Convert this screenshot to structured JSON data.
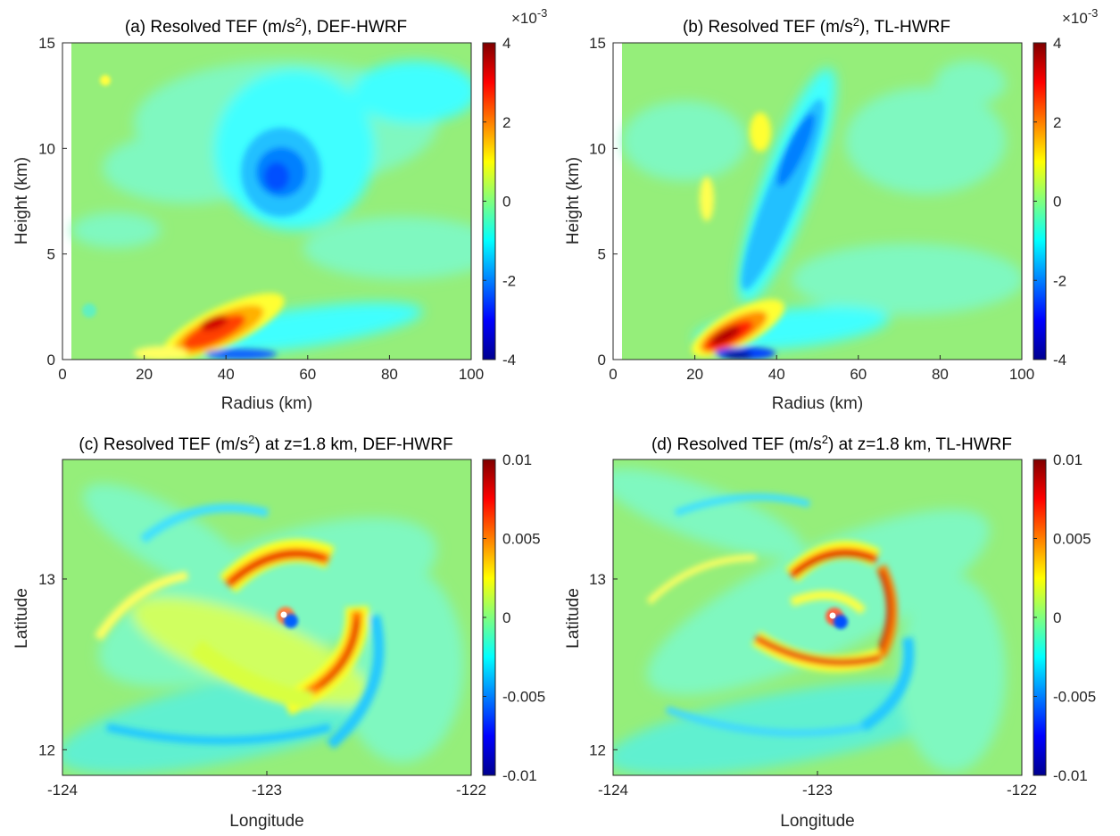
{
  "figure": {
    "colormap": [
      "#00008f",
      "#0000ff",
      "#007fff",
      "#00ffff",
      "#7fff7f",
      "#ffff00",
      "#ff7f00",
      "#ff0000",
      "#7f0000"
    ],
    "background_level_color": "#95ee7a"
  },
  "chart_data": [
    {
      "id": "a",
      "type": "heatmap",
      "title": "(a) Resolved TEF (m/s2), DEF-HWRF",
      "title_parts": {
        "pre": "(a) Resolved TEF (m/s",
        "sup": "2",
        "post": "), DEF-HWRF"
      },
      "xlabel": "Radius (km)",
      "ylabel": "Height (km)",
      "xlim": [
        0,
        100
      ],
      "ylim": [
        0,
        15
      ],
      "xticks": [
        "0",
        "20",
        "40",
        "60",
        "80",
        "100"
      ],
      "yticks": [
        "0",
        "5",
        "10",
        "15"
      ],
      "colorbar": {
        "ticks": [
          "4",
          "2",
          "0",
          "-2",
          "-4"
        ],
        "range": [
          -4,
          4
        ],
        "multiplier": "×10-3",
        "mult_base": "×10",
        "mult_exp": "-3"
      },
      "features": [
        {
          "label": "positive maximum",
          "x": 40,
          "y": 1.7,
          "value": 3.6
        },
        {
          "label": "negative band below maximum",
          "x": 50,
          "y": 0.6,
          "value": -1.6
        },
        {
          "label": "negative maximum aloft",
          "x": 52,
          "y": 9.0,
          "value": -1.8
        }
      ]
    },
    {
      "id": "b",
      "type": "heatmap",
      "title": "(b) Resolved TEF (m/s2), TL-HWRF",
      "title_parts": {
        "pre": "(b) Resolved TEF (m/s",
        "sup": "2",
        "post": "), TL-HWRF"
      },
      "xlabel": "Radius (km)",
      "ylabel": "Height (km)",
      "xlim": [
        0,
        100
      ],
      "ylim": [
        0,
        15
      ],
      "xticks": [
        "0",
        "20",
        "40",
        "60",
        "80",
        "100"
      ],
      "yticks": [
        "0",
        "5",
        "10",
        "15"
      ],
      "colorbar": {
        "ticks": [
          "4",
          "2",
          "0",
          "-2",
          "-4"
        ],
        "range": [
          -4,
          4
        ],
        "multiplier": "×10-3",
        "mult_base": "×10",
        "mult_exp": "-3"
      },
      "features": [
        {
          "label": "positive maximum",
          "x": 31,
          "y": 1.3,
          "value": 4.0
        },
        {
          "label": "negative core below maximum",
          "x": 32,
          "y": 0.4,
          "value": -3.0
        },
        {
          "label": "tilted negative band",
          "x": 43,
          "y": 10.0,
          "value": -2.0
        },
        {
          "label": "positive patch aloft",
          "x": 36,
          "y": 10.5,
          "value": 0.7
        }
      ]
    },
    {
      "id": "c",
      "type": "heatmap",
      "title": "(c) Resolved TEF (m/s2) at z=1.8 km, DEF-HWRF",
      "title_parts": {
        "pre": "(c) Resolved TEF (m/s",
        "sup": "2",
        "post": ") at z=1.8 km, DEF-HWRF"
      },
      "xlabel": "Longitude",
      "ylabel": "Latitude",
      "xlim": [
        -124,
        -122
      ],
      "ylim": [
        11.85,
        13.7
      ],
      "xticks": [
        "-124",
        "-123",
        "-122"
      ],
      "yticks": [
        "12",
        "13"
      ],
      "colorbar": {
        "ticks": [
          "0.01",
          "0.005",
          "0",
          "-0.005",
          "-0.01"
        ],
        "range": [
          -0.01,
          0.01
        ]
      },
      "features": [
        {
          "label": "storm centre",
          "lon": -122.98,
          "lat": 12.73
        },
        {
          "label": "positive eyewall arc",
          "lon": -122.87,
          "lat": 13.08,
          "value": 0.006
        },
        {
          "label": "positive spiral band",
          "lon": -122.6,
          "lat": 12.55,
          "value": 0.006
        }
      ]
    },
    {
      "id": "d",
      "type": "heatmap",
      "title": "(d) Resolved TEF (m/s2) at z=1.8 km, TL-HWRF",
      "title_parts": {
        "pre": "(d) Resolved TEF (m/s",
        "sup": "2",
        "post": ") at z=1.8 km, TL-HWRF"
      },
      "xlabel": "Longitude",
      "ylabel": "Latitude",
      "xlim": [
        -124,
        -122
      ],
      "ylim": [
        11.85,
        13.7
      ],
      "xticks": [
        "-124",
        "-123",
        "-122"
      ],
      "yticks": [
        "12",
        "13"
      ],
      "colorbar": {
        "ticks": [
          "0.01",
          "0.005",
          "0",
          "-0.005",
          "-0.01"
        ],
        "range": [
          -0.01,
          0.01
        ]
      },
      "features": [
        {
          "label": "storm centre",
          "lon": -122.98,
          "lat": 12.73
        },
        {
          "label": "positive eyewall ring",
          "lon": -122.85,
          "lat": 12.75,
          "value": 0.008
        }
      ]
    }
  ]
}
